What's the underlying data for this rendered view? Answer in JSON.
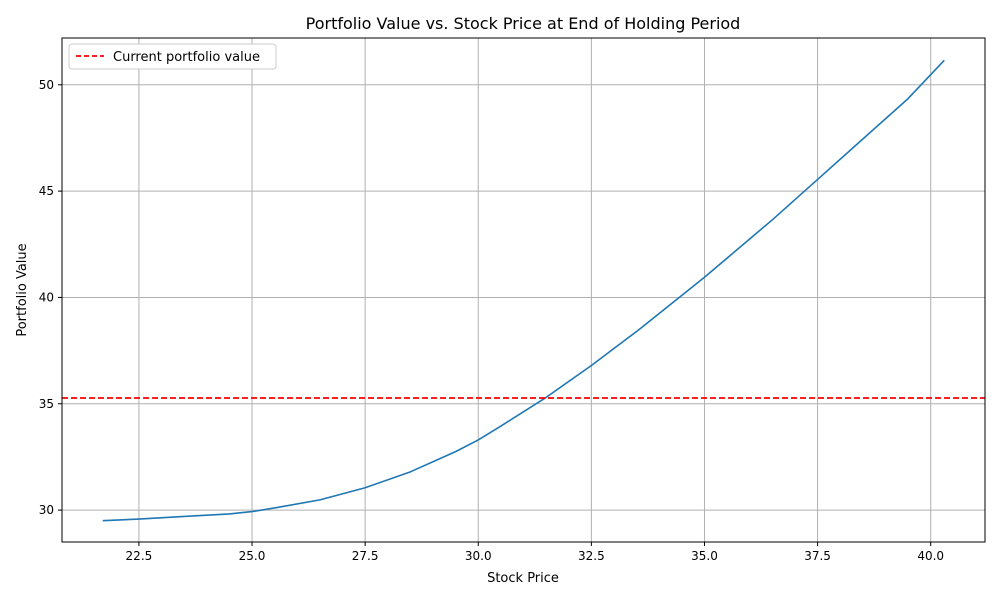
{
  "chart_data": {
    "type": "line",
    "title": "Portfolio Value vs. Stock Price at End of Holding Period",
    "xlabel": "Stock Price",
    "ylabel": "Portfolio Value",
    "xlim": [
      20.8,
      41.2
    ],
    "ylim": [
      28.5,
      52.2
    ],
    "x_ticks": [
      22.5,
      25.0,
      27.5,
      30.0,
      32.5,
      35.0,
      37.5,
      40.0
    ],
    "x_tick_labels": [
      "22.5",
      "25.0",
      "27.5",
      "30.0",
      "32.5",
      "35.0",
      "37.5",
      "40.0"
    ],
    "y_ticks": [
      30,
      35,
      40,
      45,
      50
    ],
    "y_tick_labels": [
      "30",
      "35",
      "40",
      "45",
      "50"
    ],
    "grid": true,
    "legend_position": "top-left",
    "series": [
      {
        "type": "line",
        "color": "#1f77b4",
        "x": [
          21.7,
          22.5,
          23.5,
          24.5,
          25.0,
          25.5,
          26.5,
          27.5,
          28.5,
          29.5,
          30.0,
          30.5,
          31.5,
          32.5,
          33.5,
          34.5,
          35.0,
          35.5,
          36.5,
          37.5,
          38.5,
          39.5,
          40.3
        ],
        "y": [
          29.5,
          29.58,
          29.7,
          29.82,
          29.93,
          30.1,
          30.48,
          31.05,
          31.8,
          32.75,
          33.3,
          33.95,
          35.3,
          36.8,
          38.4,
          40.1,
          40.95,
          41.85,
          43.65,
          45.55,
          47.45,
          49.35,
          51.15
        ]
      },
      {
        "type": "hline",
        "name": "Current portfolio value",
        "color": "#ff0000",
        "y": 35.27
      }
    ]
  }
}
